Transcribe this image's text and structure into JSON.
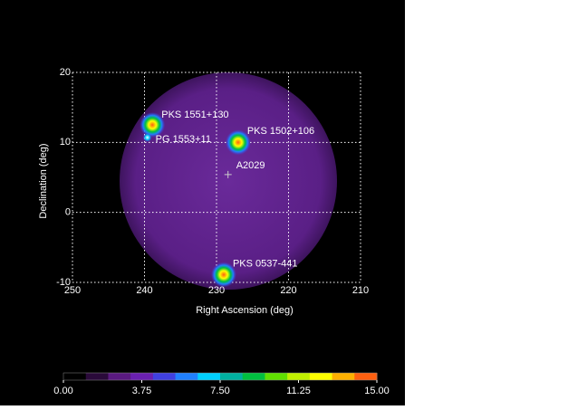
{
  "chart_data": {
    "type": "skymap",
    "xlabel": "Right Ascension (deg)",
    "ylabel": "Declination (deg)",
    "xlim": [
      250,
      210
    ],
    "ylim": [
      -10,
      20
    ],
    "xticks": [
      250,
      240,
      230,
      220,
      210
    ],
    "yticks": [
      -10,
      0,
      10,
      20
    ],
    "grid": true,
    "sources": [
      {
        "name": "PKS 1551+130",
        "x": 238.9,
        "y": 12.5
      },
      {
        "name": "PG 1553+11",
        "x": 239.6,
        "y": 10.7
      },
      {
        "name": "PKS 1502+106",
        "x": 227.0,
        "y": 10.0
      },
      {
        "name": "A2029",
        "x": 228.4,
        "y": 5.4
      },
      {
        "name": "PKS 0537-441",
        "x": 229.0,
        "y": -8.9
      }
    ],
    "colorbar": {
      "lim": [
        0,
        15
      ],
      "ticks": [
        {
          "value": 0,
          "label": "0.00"
        },
        {
          "value": 3.75,
          "label": "3.75"
        },
        {
          "value": 7.5,
          "label": "7.50"
        },
        {
          "value": 11.25,
          "label": "11.25"
        },
        {
          "value": 15,
          "label": "15.00"
        }
      ],
      "colors": [
        "#000000",
        "#2a0a3a",
        "#5a1a80",
        "#6a20b0",
        "#4040e0",
        "#2080ff",
        "#00d0ff",
        "#00b0a0",
        "#00c040",
        "#60e000",
        "#c0f000",
        "#ffff00",
        "#ffb000",
        "#ff6010"
      ]
    }
  }
}
